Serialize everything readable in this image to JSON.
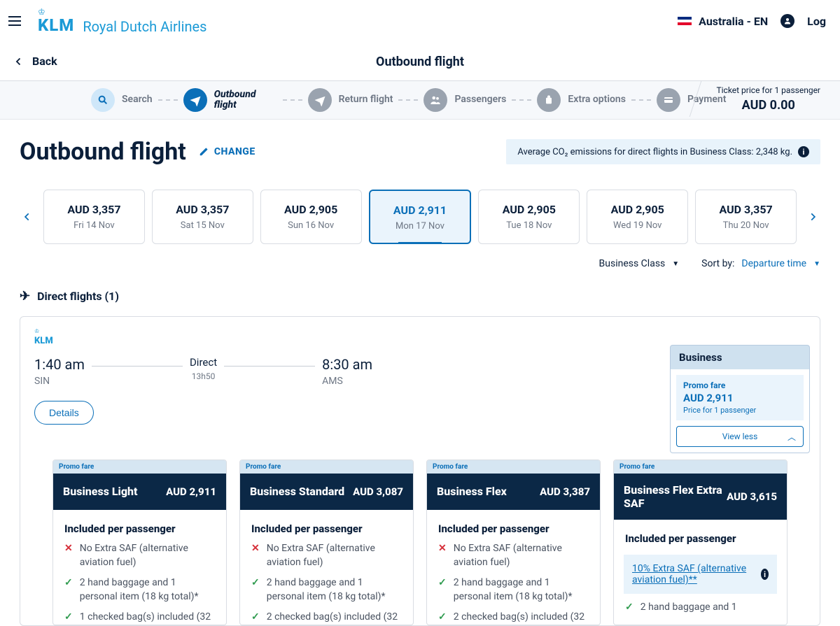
{
  "header": {
    "brand_short": "KLM",
    "brand_full": "Royal Dutch Airlines",
    "locale": "Australia - EN",
    "login": "Log"
  },
  "nav": {
    "back": "Back",
    "title": "Outbound flight"
  },
  "steps": {
    "search": "Search",
    "outbound": "Outbound flight",
    "return": "Return flight",
    "passengers": "Passengers",
    "extras": "Extra options",
    "payment": "Payment",
    "price_label": "Ticket price for 1 passenger",
    "price_value": "AUD 0.00"
  },
  "page": {
    "heading": "Outbound flight",
    "change": "CHANGE",
    "co2": "Average CO₂ emissions for direct flights in Business Class: 2,348 kg."
  },
  "dates": [
    {
      "price": "AUD 3,357",
      "day": "Fri 14 Nov",
      "active": false
    },
    {
      "price": "AUD 3,357",
      "day": "Sat 15 Nov",
      "active": false
    },
    {
      "price": "AUD 2,905",
      "day": "Sun 16 Nov",
      "active": false
    },
    {
      "price": "AUD 2,911",
      "day": "Mon 17 Nov",
      "active": true
    },
    {
      "price": "AUD 2,905",
      "day": "Tue 18 Nov",
      "active": false
    },
    {
      "price": "AUD 2,905",
      "day": "Wed 19 Nov",
      "active": false
    },
    {
      "price": "AUD 3,357",
      "day": "Thu 20 Nov",
      "active": false
    }
  ],
  "filters": {
    "class": "Business Class",
    "sort_label": "Sort by:",
    "sort_value": "Departure time"
  },
  "direct_header": "Direct flights (1)",
  "flight": {
    "dep_time": "1:40 am",
    "dep_code": "SIN",
    "direct": "Direct",
    "duration": "13h50",
    "arr_time": "8:30 am",
    "arr_code": "AMS",
    "details": "Details"
  },
  "fare_panel": {
    "tab": "Business",
    "promo": "Promo fare",
    "price": "AUD 2,911",
    "per": "Price for 1 passenger",
    "viewless": "View less"
  },
  "fares": [
    {
      "promo": "Promo fare",
      "name": "Business Light",
      "price": "AUD 2,911",
      "included": "Included per passenger",
      "features": [
        {
          "ok": false,
          "text": "No Extra SAF (alternative aviation fuel)"
        },
        {
          "ok": true,
          "text": "2 hand baggage and 1 personal item (18 kg total)*"
        },
        {
          "ok": true,
          "text": "1 checked bag(s) included (32"
        }
      ]
    },
    {
      "promo": "Promo fare",
      "name": "Business Standard",
      "price": "AUD 3,087",
      "included": "Included per passenger",
      "features": [
        {
          "ok": false,
          "text": "No Extra SAF (alternative aviation fuel)"
        },
        {
          "ok": true,
          "text": "2 hand baggage and 1 personal item (18 kg total)*"
        },
        {
          "ok": true,
          "text": "2 checked bag(s) included (32"
        }
      ]
    },
    {
      "promo": "Promo fare",
      "name": "Business Flex",
      "price": "AUD 3,387",
      "included": "Included per passenger",
      "features": [
        {
          "ok": false,
          "text": "No Extra SAF (alternative aviation fuel)"
        },
        {
          "ok": true,
          "text": "2 hand baggage and 1 personal item (18 kg total)*"
        },
        {
          "ok": true,
          "text": "2 checked bag(s) included (32"
        }
      ]
    },
    {
      "promo": "Promo fare",
      "name": "Business Flex Extra SAF",
      "price": "AUD 3,615",
      "included": "Included per passenger",
      "saf_link": "10% Extra SAF (alternative aviation fuel)**",
      "features": [
        {
          "ok": true,
          "text": "2 hand baggage and 1"
        }
      ]
    }
  ]
}
